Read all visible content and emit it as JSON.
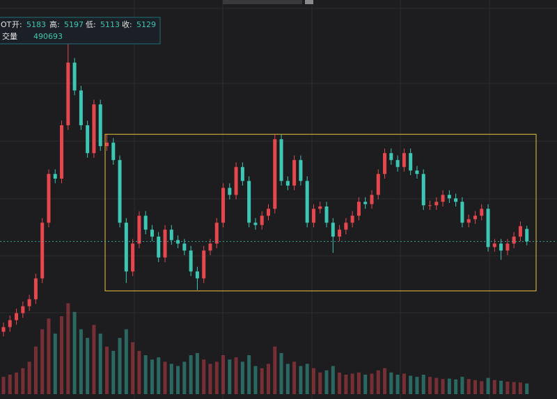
{
  "legend": {
    "symbol": "OT",
    "open_label": "开:",
    "high_label": "高:",
    "low_label": "低:",
    "close_label": "收:",
    "volume_label": "交量"
  },
  "chart_data": {
    "type": "candlestick",
    "open": [
      4740,
      4760,
      4790,
      4820,
      4850,
      4880,
      4970,
      5210,
      5420,
      5400,
      5630,
      5900,
      5780,
      5630,
      5510,
      5720,
      5540,
      5555,
      5480,
      5210,
      5000,
      5120,
      5240,
      5180,
      5150,
      5060,
      5180,
      5135,
      5120,
      5090,
      5000,
      4970,
      5090,
      5120,
      5210,
      5360,
      5330,
      5450,
      5390,
      5210,
      5200,
      5240,
      5270,
      5570,
      5390,
      5370,
      5480,
      5390,
      5210,
      5270,
      5280,
      5210,
      5150,
      5180,
      5210,
      5240,
      5300,
      5290,
      5330,
      5420,
      5510,
      5480,
      5450,
      5510,
      5435,
      5420,
      5285,
      5285,
      5300,
      5330,
      5315,
      5300,
      5210,
      5225,
      5240,
      5270,
      5105,
      5120,
      5090,
      5120,
      5150,
      5183
    ],
    "high": [
      4780,
      4810,
      4840,
      4870,
      4900,
      4990,
      5230,
      5440,
      5440,
      5650,
      5980,
      5920,
      5800,
      5650,
      5740,
      5740,
      5590,
      5575,
      5500,
      5230,
      5140,
      5260,
      5260,
      5200,
      5170,
      5200,
      5200,
      5155,
      5140,
      5110,
      5020,
      5110,
      5140,
      5230,
      5380,
      5380,
      5470,
      5470,
      5410,
      5230,
      5260,
      5290,
      5590,
      5590,
      5410,
      5500,
      5500,
      5410,
      5290,
      5300,
      5300,
      5230,
      5200,
      5230,
      5260,
      5320,
      5320,
      5350,
      5440,
      5530,
      5530,
      5500,
      5530,
      5530,
      5455,
      5440,
      5305,
      5320,
      5350,
      5350,
      5335,
      5320,
      5245,
      5260,
      5290,
      5290,
      5140,
      5140,
      5140,
      5170,
      5215,
      5197
    ],
    "low": [
      4720,
      4740,
      4770,
      4800,
      4830,
      4860,
      4950,
      5190,
      5380,
      5380,
      5610,
      5760,
      5610,
      5490,
      5490,
      5520,
      5520,
      5460,
      5190,
      4950,
      4980,
      5100,
      5160,
      5130,
      5040,
      5040,
      5115,
      5100,
      5070,
      4980,
      4920,
      4950,
      5070,
      5100,
      5190,
      5310,
      5310,
      5370,
      5190,
      5180,
      5180,
      5220,
      5250,
      5370,
      5350,
      5350,
      5370,
      5190,
      5190,
      5250,
      5190,
      5080,
      5130,
      5160,
      5190,
      5220,
      5270,
      5270,
      5310,
      5400,
      5460,
      5430,
      5430,
      5415,
      5400,
      5265,
      5265,
      5265,
      5280,
      5295,
      5280,
      5190,
      5190,
      5205,
      5220,
      5085,
      5085,
      5050,
      5070,
      5100,
      5130,
      5113
    ],
    "close": [
      4760,
      4790,
      4820,
      4850,
      4880,
      4970,
      5210,
      5420,
      5400,
      5630,
      5900,
      5780,
      5630,
      5510,
      5720,
      5540,
      5555,
      5480,
      5210,
      5000,
      5120,
      5240,
      5180,
      5150,
      5060,
      5180,
      5135,
      5120,
      5090,
      5000,
      4970,
      5090,
      5120,
      5210,
      5360,
      5330,
      5450,
      5390,
      5210,
      5200,
      5240,
      5270,
      5570,
      5390,
      5370,
      5480,
      5390,
      5210,
      5270,
      5280,
      5210,
      5150,
      5180,
      5210,
      5240,
      5300,
      5290,
      5330,
      5420,
      5510,
      5480,
      5450,
      5510,
      5435,
      5420,
      5285,
      5285,
      5300,
      5330,
      5315,
      5300,
      5210,
      5225,
      5240,
      5270,
      5105,
      5120,
      5090,
      5120,
      5150,
      5195,
      5129
    ],
    "volume": [
      800000,
      900000,
      1000000,
      1200000,
      1500000,
      2200000,
      3000000,
      3500000,
      2800000,
      3600000,
      4200000,
      3800000,
      3000000,
      2600000,
      3200000,
      2800000,
      2200000,
      2000000,
      2600000,
      3000000,
      2400000,
      2000000,
      1800000,
      1600000,
      1700000,
      1500000,
      1400000,
      1300000,
      1500000,
      1800000,
      1900000,
      1600000,
      1400000,
      1500000,
      1800000,
      1600000,
      1700000,
      1500000,
      1800000,
      1300000,
      1200000,
      1400000,
      2200000,
      1900000,
      1400000,
      1500000,
      1300000,
      1400000,
      1200000,
      1000000,
      1100000,
      1300000,
      1000000,
      900000,
      950000,
      1000000,
      900000,
      950000,
      1100000,
      1200000,
      1000000,
      900000,
      950000,
      850000,
      800000,
      900000,
      800000,
      750000,
      700000,
      720000,
      680000,
      800000,
      700000,
      650000,
      600000,
      750000,
      650000,
      620000,
      580000,
      560000,
      540000,
      490693
    ],
    "ylim": [
      4450,
      6170
    ],
    "volume_lim": [
      0,
      4500000
    ],
    "up_color": "#e5474f",
    "down_color": "#3ec6b4",
    "box": {
      "high": 5591,
      "low": 4916,
      "color": "#c9a93a"
    },
    "last_price_line": true
  }
}
